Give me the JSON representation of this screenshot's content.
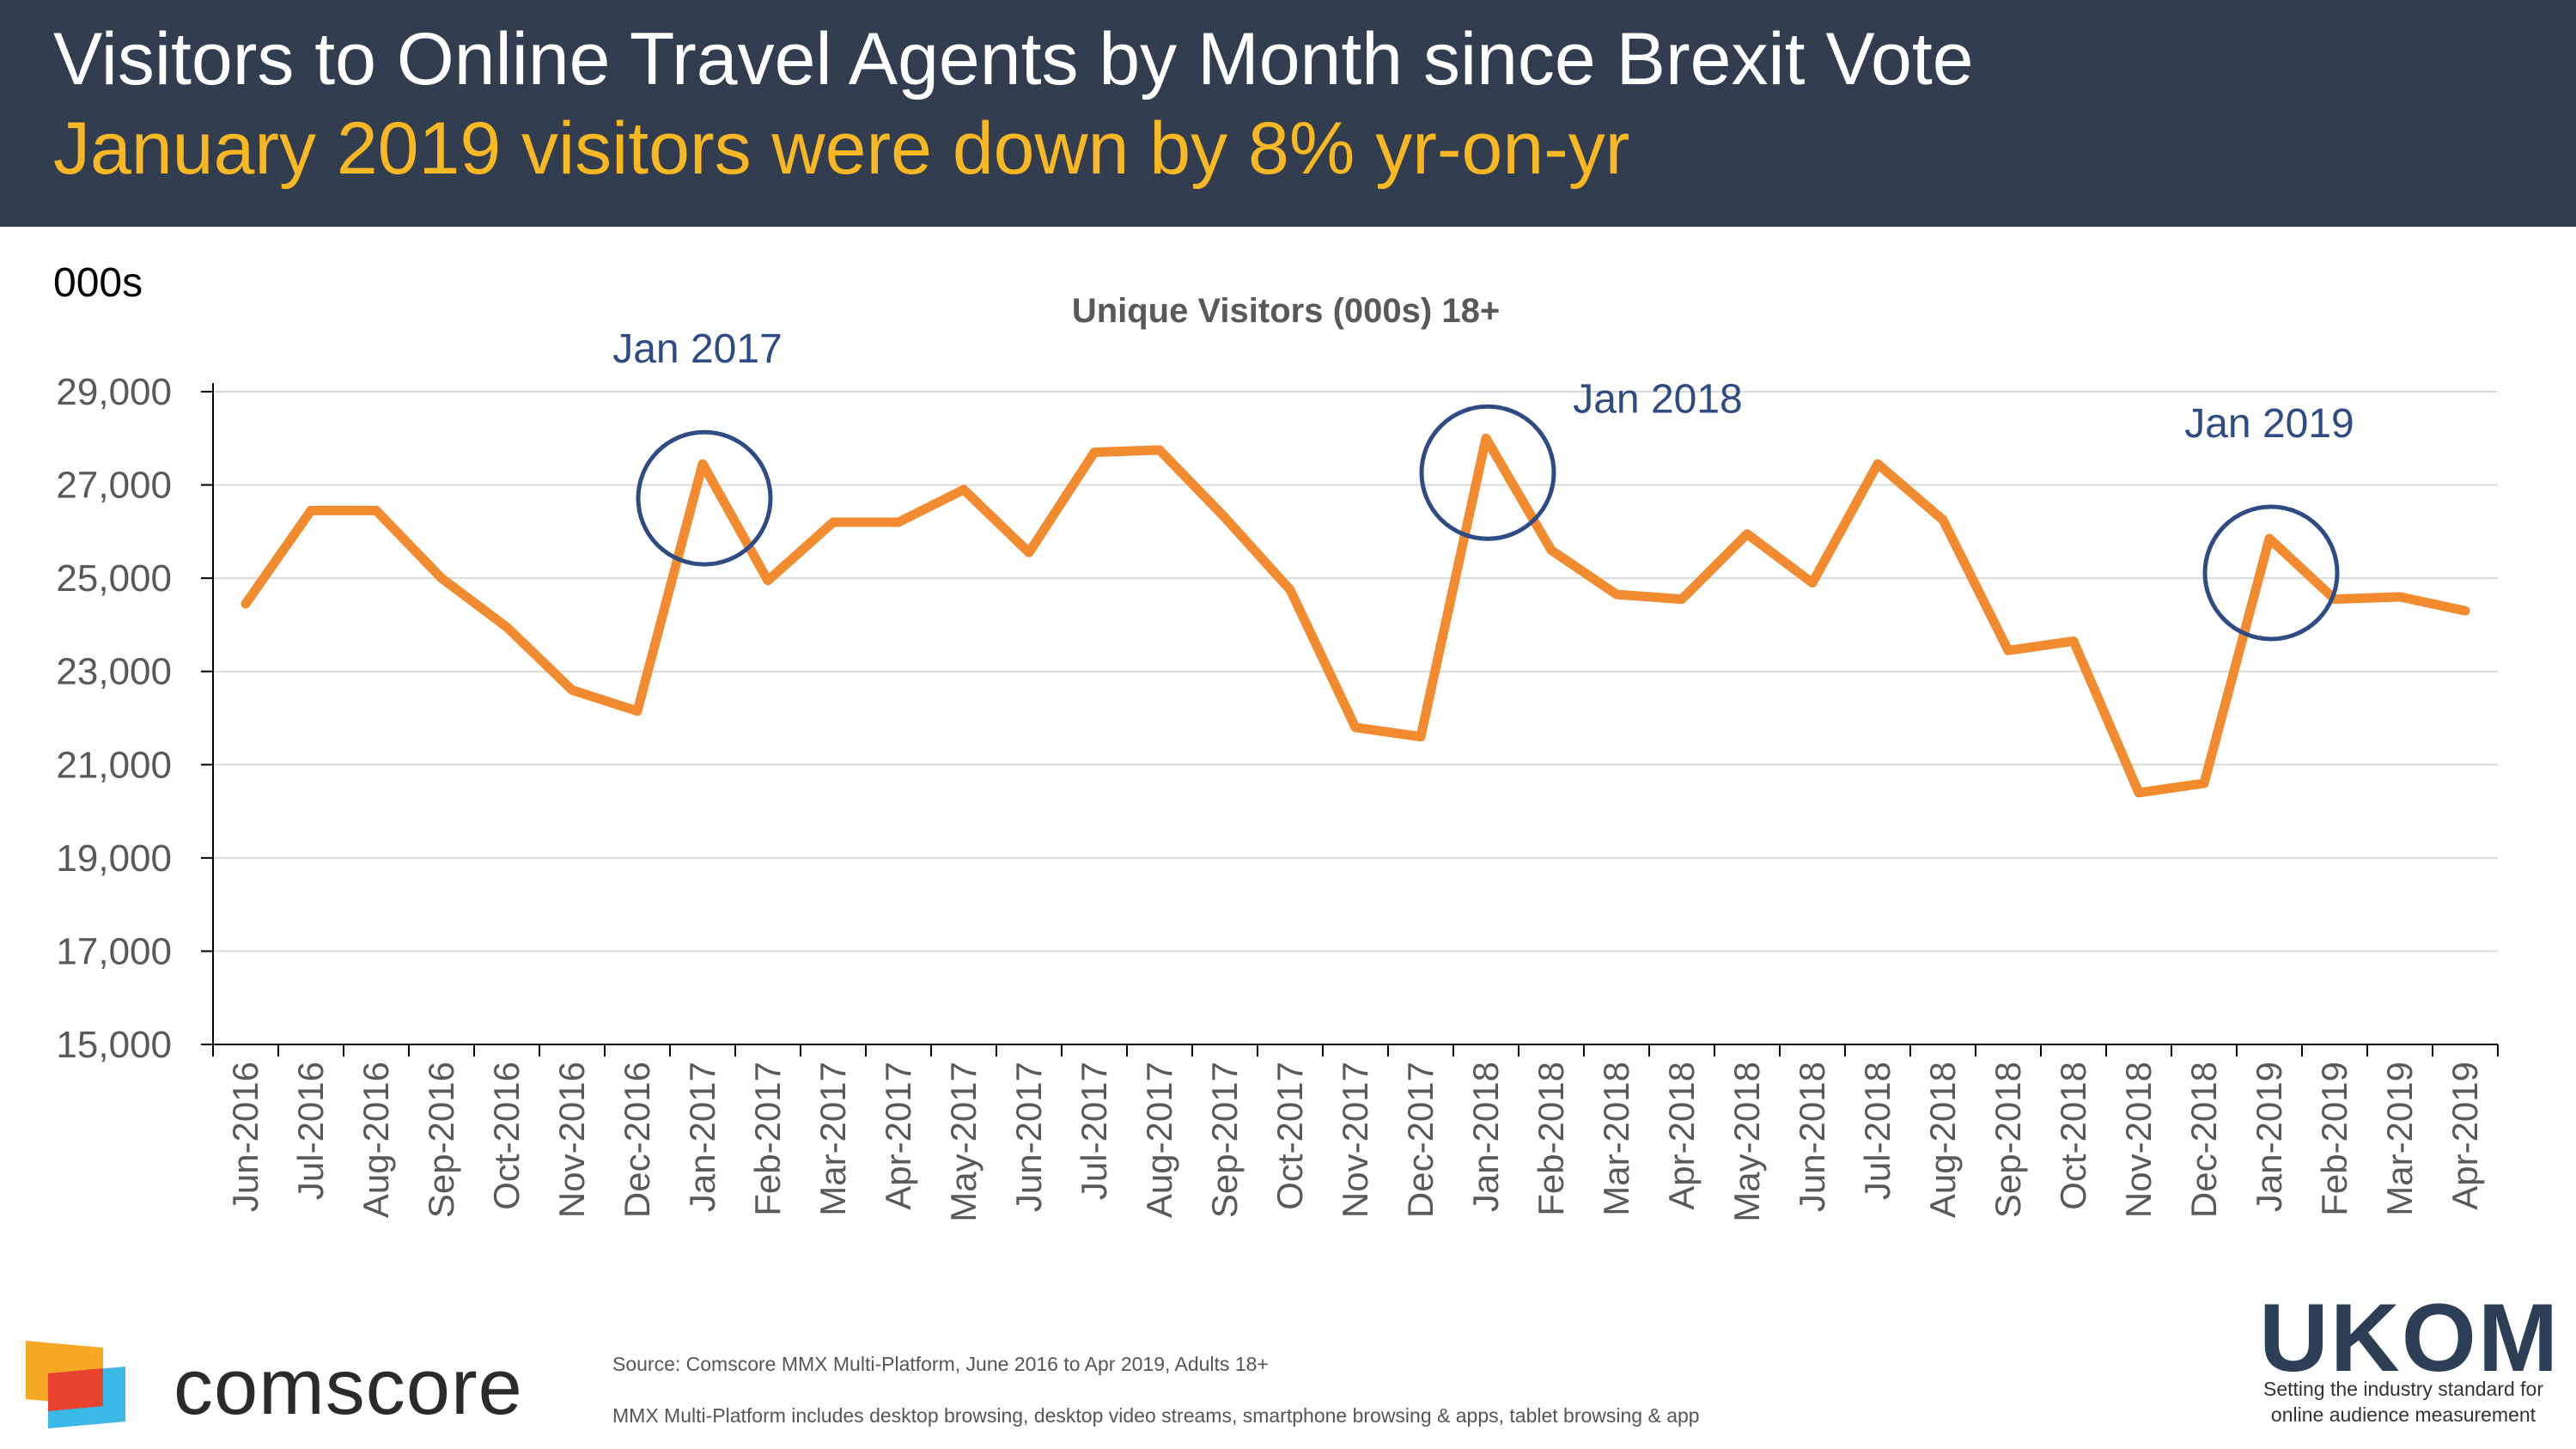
{
  "header": {
    "title": "Visitors to Online Travel Agents by Month since Brexit Vote",
    "subtitle": "January 2019 visitors were down by 8% yr-on-yr"
  },
  "units_label": "000s",
  "colors": {
    "header_bg": "#323d4f",
    "subtitle": "#f7b824",
    "line": "#f28a30",
    "annotation": "#2f4b84",
    "grid": "#d9d9d9"
  },
  "chart_data": {
    "type": "line",
    "title": "Unique Visitors (000s) 18+",
    "categories": [
      "Jun-2016",
      "Jul-2016",
      "Aug-2016",
      "Sep-2016",
      "Oct-2016",
      "Nov-2016",
      "Dec-2016",
      "Jan-2017",
      "Feb-2017",
      "Mar-2017",
      "Apr-2017",
      "May-2017",
      "Jun-2017",
      "Jul-2017",
      "Aug-2017",
      "Sep-2017",
      "Oct-2017",
      "Nov-2017",
      "Dec-2017",
      "Jan-2018",
      "Feb-2018",
      "Mar-2018",
      "Apr-2018",
      "May-2018",
      "Jun-2018",
      "Jul-2018",
      "Aug-2018",
      "Sep-2018",
      "Oct-2018",
      "Nov-2018",
      "Dec-2018",
      "Jan-2019",
      "Feb-2019",
      "Mar-2019",
      "Apr-2019"
    ],
    "values": [
      24450,
      26450,
      26450,
      25000,
      23950,
      22600,
      22150,
      27450,
      24950,
      26200,
      26200,
      26900,
      25550,
      27700,
      27750,
      26300,
      24750,
      21800,
      21600,
      28000,
      25600,
      24650,
      24550,
      25950,
      24900,
      27450,
      26250,
      23450,
      23650,
      20400,
      20600,
      25850,
      24550,
      24600,
      24300
    ],
    "y_ticks": [
      "15,000",
      "17,000",
      "19,000",
      "21,000",
      "23,000",
      "25,000",
      "27,000",
      "29,000"
    ],
    "ylim": [
      15000,
      29000
    ],
    "grid": true,
    "annotations": [
      {
        "label": "Jan 2017",
        "category_index": 7
      },
      {
        "label": "Jan 2018",
        "category_index": 19
      },
      {
        "label": "Jan 2019",
        "category_index": 31
      }
    ]
  },
  "footer": {
    "source": "Source: Comscore MMX Multi-Platform, June 2016 to Apr 2019, Adults 18+",
    "note": "MMX Multi-Platform includes desktop browsing, desktop video streams, smartphone browsing & apps, tablet browsing & app",
    "comscore_name": "comscore",
    "ukom_name": "UKOM",
    "ukom_tagline": "Setting the industry standard for online audience measurement"
  }
}
